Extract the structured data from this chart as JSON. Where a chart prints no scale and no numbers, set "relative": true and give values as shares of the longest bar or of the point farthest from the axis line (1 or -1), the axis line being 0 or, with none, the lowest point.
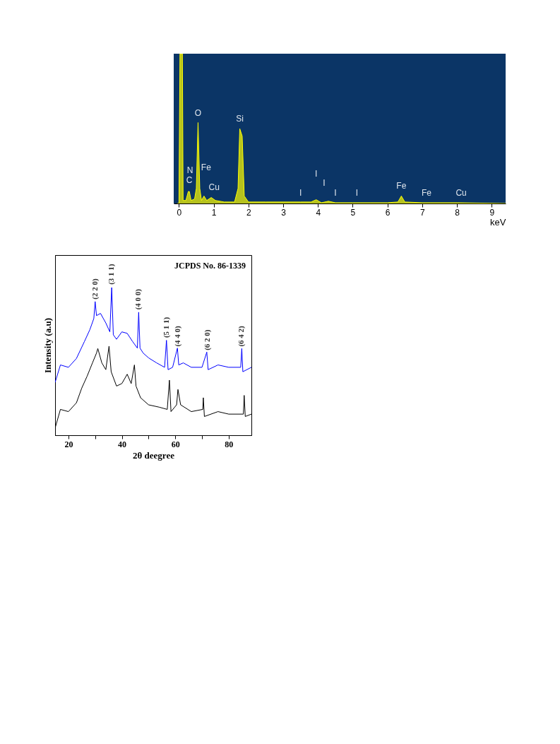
{
  "chart_data": [
    {
      "type": "area",
      "xlabel": "keV",
      "xlim": [
        -0.15,
        9.4
      ],
      "xticks": [
        0,
        1,
        2,
        3,
        4,
        5,
        6,
        7,
        8,
        9
      ],
      "relative": true,
      "series": [
        {
          "color": "#ffff00",
          "x": [
            -0.05,
            0.0,
            0.03,
            0.1,
            0.12,
            0.2,
            0.27,
            0.3,
            0.35,
            0.45,
            0.5,
            0.55,
            0.6,
            0.65,
            0.72,
            0.8,
            0.93,
            1.05,
            1.3,
            1.6,
            1.7,
            1.75,
            1.82,
            1.88,
            2.0,
            2.5,
            3.0,
            3.5,
            3.8,
            3.95,
            4.1,
            4.3,
            4.5,
            5.0,
            5.5,
            6.0,
            6.3,
            6.4,
            6.5,
            7.0,
            8.0,
            9.4
          ],
          "values": [
            0,
            0,
            1,
            1,
            0.02,
            0.02,
            0.08,
            0.08,
            0.02,
            0.03,
            0.1,
            0.54,
            0.1,
            0.02,
            0.05,
            0.02,
            0.04,
            0.02,
            0.01,
            0.01,
            0.1,
            0.5,
            0.45,
            0.05,
            0.01,
            0.01,
            0.01,
            0.01,
            0.01,
            0.025,
            0.005,
            0.015,
            0.005,
            0.005,
            0.005,
            0.005,
            0.01,
            0.05,
            0.01,
            0.005,
            0.005,
            0
          ]
        }
      ],
      "annotations": [
        {
          "text": "O",
          "x": 0.55,
          "y": 0.54
        },
        {
          "text": "Si",
          "x": 1.75,
          "y": 0.5
        },
        {
          "text": "N",
          "x": 0.5,
          "y": 0.1
        },
        {
          "text": "Fe",
          "x": 0.72,
          "y": 0.05
        },
        {
          "text": "C",
          "x": 0.3,
          "y": 0.08
        },
        {
          "text": "Cu",
          "x": 0.93,
          "y": 0.04
        },
        {
          "text": "I",
          "x": 3.5,
          "y": 0.01
        },
        {
          "text": "I",
          "x": 3.95,
          "y": 0.025
        },
        {
          "text": "I",
          "x": 4.3,
          "y": 0.015
        },
        {
          "text": "I",
          "x": 4.5,
          "y": 0.005
        },
        {
          "text": "I",
          "x": 5.0,
          "y": 0.005
        },
        {
          "text": "Fe",
          "x": 6.4,
          "y": 0.05
        },
        {
          "text": "Fe",
          "x": 7.0,
          "y": 0.005
        },
        {
          "text": "Cu",
          "x": 8.0,
          "y": 0.005
        }
      ]
    },
    {
      "type": "line",
      "xlabel": "2θ deegree",
      "ylabel": "Intensity (a.u)",
      "xlim": [
        15,
        88.5
      ],
      "xticks": [
        20,
        {
          "value": 30,
          "label": null
        },
        40,
        {
          "value": 50,
          "label": null
        },
        60,
        {
          "value": 70,
          "label": null
        },
        80
      ],
      "relative": true,
      "series": [
        {
          "color": "#0000ff",
          "x": [
            15,
            17,
            20,
            23,
            26,
            28,
            29.5,
            30,
            30.5,
            32,
            34,
            35.5,
            36.2,
            36.8,
            38,
            40,
            42,
            44,
            45.8,
            46.3,
            46.8,
            48,
            50,
            53,
            56,
            56.7,
            57.3,
            59,
            60.8,
            61.3,
            63,
            66,
            70,
            71.8,
            72.3,
            76,
            80,
            84.5,
            84.9,
            85.3,
            88.5
          ],
          "values": [
            0.357,
            0.476,
            0.46,
            0.52,
            0.635,
            0.714,
            0.79,
            0.905,
            0.81,
            0.825,
            0.76,
            0.7,
            1,
            0.68,
            0.65,
            0.7,
            0.69,
            0.635,
            0.59,
            0.833,
            0.59,
            0.556,
            0.524,
            0.49,
            0.46,
            0.643,
            0.444,
            0.46,
            0.59,
            0.476,
            0.49,
            0.46,
            0.46,
            0.563,
            0.444,
            0.476,
            0.46,
            0.46,
            0.587,
            0.43,
            0.46
          ]
        },
        {
          "color": "#000000",
          "x": [
            15,
            17,
            20,
            23,
            25,
            27,
            29,
            30.5,
            31,
            32.5,
            34,
            35.2,
            36,
            38,
            40,
            42,
            43.5,
            44.7,
            45.3,
            47,
            50,
            54,
            57,
            57.8,
            58.4,
            60.5,
            61,
            62,
            66,
            70.3,
            70.5,
            70.9,
            76,
            80,
            85.5,
            85.8,
            86.2,
            88.5
          ],
          "values": [
            0.048,
            0.175,
            0.16,
            0.22,
            0.32,
            0.4,
            0.49,
            0.556,
            0.587,
            0.49,
            0.444,
            0.603,
            0.43,
            0.333,
            0.35,
            0.413,
            0.35,
            0.476,
            0.333,
            0.254,
            0.206,
            0.19,
            0.175,
            0.373,
            0.16,
            0.206,
            0.31,
            0.206,
            0.16,
            0.175,
            0.254,
            0.127,
            0.16,
            0.143,
            0.143,
            0.27,
            0.127,
            0.143
          ]
        }
      ],
      "annotations": [
        "JCPDS No. 86-1339",
        {
          "text": "(2 2 0)",
          "x": 30,
          "y": 0.92
        },
        {
          "text": "(3 1 1)",
          "x": 36.2,
          "y": 1.02
        },
        {
          "text": "(4 0 0)",
          "x": 46.3,
          "y": 0.85
        },
        {
          "text": "(5 1 1)",
          "x": 56.7,
          "y": 0.66
        },
        {
          "text": "(4 4 0)",
          "x": 61,
          "y": 0.6
        },
        {
          "text": "(6 2 0)",
          "x": 72,
          "y": 0.575
        },
        {
          "text": "(6 4 2)",
          "x": 84.9,
          "y": 0.6
        }
      ]
    }
  ]
}
